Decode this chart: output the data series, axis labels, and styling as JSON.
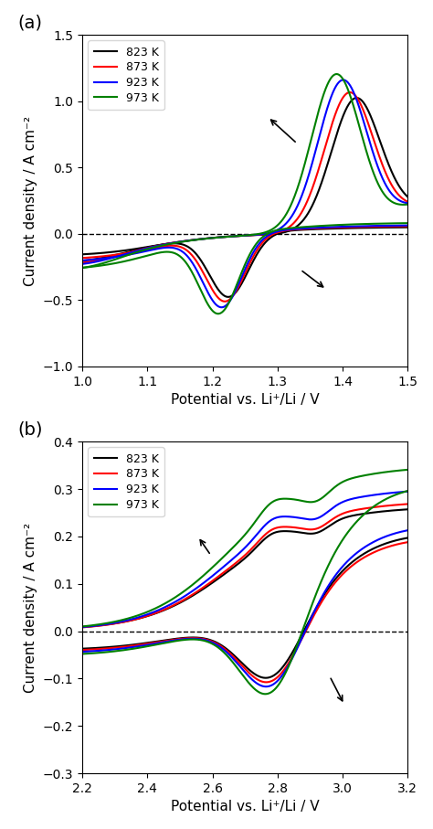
{
  "panel_a": {
    "xlim": [
      1.0,
      1.5
    ],
    "ylim": [
      -1.0,
      1.5
    ],
    "xlabel": "Potential vs. Li⁺/Li / V",
    "ylabel": "Current density / A cm⁻²",
    "xticks": [
      1.0,
      1.1,
      1.2,
      1.3,
      1.4,
      1.5
    ],
    "yticks": [
      -1.0,
      -0.5,
      0,
      0.5,
      1.0,
      1.5
    ],
    "legend_labels": [
      "823 K",
      "873 K",
      "923 K",
      "973 K"
    ],
    "colors": [
      "black",
      "red",
      "blue",
      "green"
    ]
  },
  "panel_b": {
    "xlim": [
      2.2,
      3.2
    ],
    "ylim": [
      -0.3,
      0.4
    ],
    "xlabel": "Potential vs. Li⁺/Li / V",
    "ylabel": "Current density / A cm⁻²",
    "xticks": [
      2.2,
      2.4,
      2.6,
      2.8,
      3.0,
      3.2
    ],
    "yticks": [
      -0.3,
      -0.2,
      -0.1,
      0,
      0.1,
      0.2,
      0.3,
      0.4
    ],
    "legend_labels": [
      "823 K",
      "873 K",
      "923 K",
      "973 K"
    ],
    "colors": [
      "black",
      "red",
      "blue",
      "green"
    ]
  }
}
